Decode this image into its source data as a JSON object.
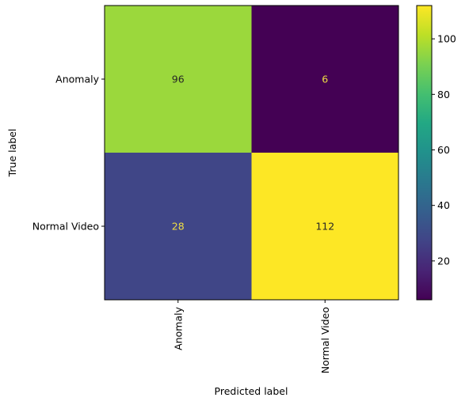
{
  "chart_data": {
    "type": "heatmap",
    "title": "",
    "xlabel": "Predicted label",
    "ylabel": "True label",
    "x_categories": [
      "Anomaly",
      "Normal Video"
    ],
    "y_categories": [
      "Anomaly",
      "Normal Video"
    ],
    "values": [
      [
        96,
        6
      ],
      [
        28,
        112
      ]
    ],
    "colormap": "viridis",
    "colorbar": {
      "range": [
        6,
        112
      ],
      "ticks": [
        20,
        40,
        60,
        80,
        100
      ],
      "tick_labels": [
        "20",
        "40",
        "60",
        "80",
        "100"
      ]
    },
    "text_colors": {
      "on_dark": "#f0de43",
      "on_light": "#262626"
    },
    "x_tick_rotation": "vertical",
    "grid": false
  }
}
